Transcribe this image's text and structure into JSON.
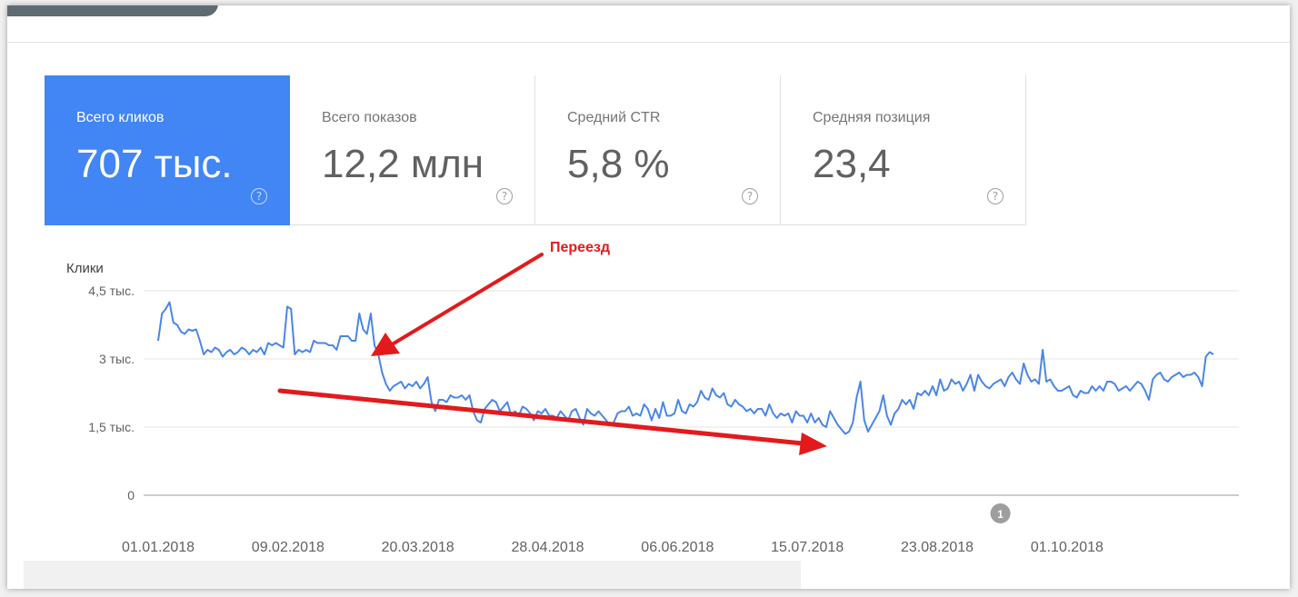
{
  "metrics": [
    {
      "label": "Всего кликов",
      "value": "707 тыс.",
      "help": "?",
      "active": true
    },
    {
      "label": "Всего показов",
      "value": "12,2 млн",
      "help": "?",
      "active": false
    },
    {
      "label": "Средний CTR",
      "value": "5,8 %",
      "help": "?",
      "active": false
    },
    {
      "label": "Средняя позиция",
      "value": "23,4",
      "help": "?",
      "active": false
    }
  ],
  "annotation": {
    "text": "Переезд",
    "color": "#e31a1c",
    "marker_label": "1",
    "marker_date": "2018-09-11"
  },
  "colors": {
    "accent": "#4285f4",
    "line": "#4a86e8",
    "arrow": "#e31a1c",
    "marker": "#9e9e9e"
  },
  "chart_data": {
    "type": "line",
    "title": "",
    "ylabel": "Клики",
    "xlabel": "",
    "ylim": [
      0,
      4500
    ],
    "yticks": [
      0,
      1500,
      3000,
      4500
    ],
    "ytick_labels": [
      "0",
      "1,5 тыс.",
      "3 тыс.",
      "4,5 тыс."
    ],
    "xticks": [
      "2018-01-01",
      "2018-02-09",
      "2018-03-20",
      "2018-04-28",
      "2018-06-06",
      "2018-07-15",
      "2018-08-23",
      "2018-10-01"
    ],
    "xtick_labels": [
      "01.01.2018",
      "09.02.2018",
      "20.03.2018",
      "28.04.2018",
      "06.06.2018",
      "15.07.2018",
      "23.08.2018",
      "01.10.2018"
    ],
    "x_start": "2018-01-01",
    "x_end": "2018-11-14",
    "grid": true,
    "series": [
      {
        "name": "",
        "color": "#4a86e8",
        "values": [
          3400,
          4000,
          4100,
          4250,
          3800,
          3750,
          3600,
          3550,
          3650,
          3620,
          3650,
          3400,
          3100,
          3200,
          3150,
          3250,
          3200,
          3050,
          3150,
          3200,
          3100,
          3150,
          3250,
          3200,
          3100,
          3200,
          3150,
          3250,
          3100,
          3350,
          3300,
          3350,
          3300,
          3250,
          4150,
          4100,
          3100,
          3200,
          3150,
          3200,
          3150,
          3400,
          3350,
          3350,
          3350,
          3300,
          3300,
          3200,
          3500,
          3500,
          3500,
          3400,
          3400,
          4000,
          3650,
          3550,
          4000,
          3300,
          3100,
          2700,
          2450,
          2300,
          2400,
          2450,
          2500,
          2350,
          2450,
          2400,
          2500,
          2350,
          2450,
          2600,
          2050,
          1850,
          2100,
          2100,
          2050,
          2200,
          2150,
          2150,
          2200,
          2100,
          2200,
          1850,
          1650,
          1600,
          1900,
          2000,
          2100,
          2050,
          1850,
          1950,
          2050,
          1750,
          1850,
          1750,
          1950,
          1900,
          1800,
          1650,
          1850,
          1800,
          1900,
          1750,
          1750,
          1700,
          1850,
          1750,
          1650,
          1850,
          1900,
          1700,
          1550,
          1900,
          1800,
          1750,
          1850,
          1750,
          1650,
          1550,
          1600,
          1800,
          1850,
          1850,
          1950,
          1750,
          1800,
          1750,
          2000,
          1900,
          1650,
          1900,
          1700,
          2050,
          1750,
          1750,
          1800,
          2100,
          1850,
          1800,
          2000,
          1950,
          2050,
          2300,
          2150,
          2100,
          2350,
          2200,
          2150,
          2250,
          2000,
          1950,
          2100,
          2000,
          1950,
          1850,
          1900,
          1800,
          1900,
          1900,
          1750,
          2000,
          1800,
          1700,
          1800,
          1750,
          1800,
          1600,
          1850,
          1750,
          1750,
          1600,
          1800,
          1600,
          1700,
          1550,
          1500,
          1850,
          1700,
          1550,
          1450,
          1350,
          1400,
          1600,
          2150,
          2500,
          1650,
          1400,
          1550,
          1700,
          1850,
          2200,
          1750,
          1550,
          1800,
          1900,
          2100,
          2000,
          2100,
          1900,
          2250,
          2200,
          2300,
          2200,
          2400,
          2200,
          2550,
          2300,
          2350,
          2550,
          2450,
          2500,
          2300,
          2450,
          2650,
          2300,
          2650,
          2500,
          2400,
          2350,
          2450,
          2500,
          2550,
          2400,
          2600,
          2700,
          2550,
          2450,
          2900,
          2650,
          2500,
          2550,
          2450,
          3200,
          2500,
          2550,
          2400,
          2300,
          2300,
          2350,
          2400,
          2200,
          2150,
          2300,
          2250,
          2250,
          2400,
          2300,
          2400,
          2300,
          2500,
          2500,
          2450,
          2300,
          2350,
          2400,
          2300,
          2400,
          2500,
          2450,
          2300,
          2100,
          2550,
          2650,
          2700,
          2550,
          2500,
          2600,
          2650,
          2700,
          2600,
          2650,
          2650,
          2700,
          2600,
          2400,
          3050,
          3150,
          3100
        ]
      }
    ]
  }
}
